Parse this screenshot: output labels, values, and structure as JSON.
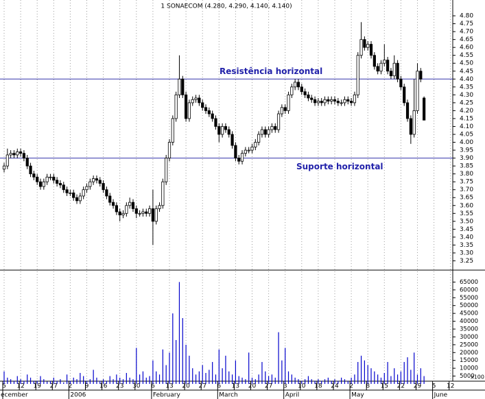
{
  "chart_data": {
    "type": "candlestick",
    "title": "1 SONAECOM (4.280, 4.290, 4.140, 4.140)",
    "categories": [
      "5",
      null,
      null,
      null,
      null,
      "12",
      null,
      null,
      null,
      null,
      "19",
      null,
      null,
      null,
      null,
      "27",
      null,
      null,
      null,
      null,
      "2",
      null,
      null,
      null,
      null,
      "9",
      null,
      null,
      null,
      null,
      "16",
      null,
      null,
      null,
      null,
      "23",
      null,
      null,
      null,
      null,
      "30",
      null,
      null,
      null,
      null,
      "6",
      null,
      null,
      null,
      null,
      "13",
      null,
      null,
      null,
      null,
      "20",
      null,
      null,
      null,
      null,
      "27",
      null,
      null,
      null,
      null,
      "6",
      null,
      null,
      null,
      null,
      "13",
      null,
      null,
      null,
      null,
      "20",
      null,
      null,
      null,
      null,
      "27",
      null,
      null,
      null,
      null,
      "3",
      null,
      null,
      null,
      null,
      "10",
      null,
      null,
      null,
      null,
      "18",
      null,
      null,
      null,
      null,
      "24",
      null,
      null,
      null,
      null,
      "2",
      null,
      null,
      null,
      null,
      "8",
      null,
      null,
      null,
      null,
      "15",
      null,
      null,
      null,
      null,
      "22",
      null,
      null,
      null,
      null,
      "29",
      null,
      null,
      null,
      null,
      "5",
      null,
      null,
      null,
      null,
      "12"
    ],
    "months": [
      "ecember",
      null,
      null,
      null,
      null,
      null,
      null,
      null,
      null,
      null,
      null,
      null,
      null,
      null,
      null,
      null,
      null,
      null,
      null,
      null,
      "2006",
      null,
      null,
      null,
      null,
      null,
      null,
      null,
      null,
      null,
      null,
      null,
      null,
      null,
      null,
      null,
      null,
      null,
      null,
      null,
      null,
      null,
      null,
      null,
      null,
      "February",
      null,
      null,
      null,
      null,
      null,
      null,
      null,
      null,
      null,
      null,
      null,
      null,
      null,
      null,
      null,
      null,
      null,
      null,
      null,
      "March",
      null,
      null,
      null,
      null,
      null,
      null,
      null,
      null,
      null,
      null,
      null,
      null,
      null,
      null,
      null,
      null,
      null,
      null,
      null,
      "April",
      null,
      null,
      null,
      null,
      null,
      null,
      null,
      null,
      null,
      null,
      null,
      null,
      null,
      null,
      null,
      null,
      null,
      null,
      null,
      "May",
      null,
      null,
      null,
      null,
      null,
      null,
      null,
      null,
      null,
      null,
      null,
      null,
      null,
      null,
      null,
      null,
      null,
      null,
      null,
      null,
      null,
      null,
      null,
      null,
      "June",
      null,
      null,
      null,
      null,
      null
    ],
    "open": [
      3.83,
      3.85,
      3.92,
      3.93,
      3.92,
      3.94,
      3.93,
      3.9,
      3.85,
      3.8,
      3.78,
      3.75,
      3.72,
      3.75,
      3.78,
      3.78,
      3.76,
      3.74,
      3.73,
      3.7,
      3.68,
      3.68,
      3.65,
      3.63,
      3.66,
      3.7,
      3.72,
      3.75,
      3.77,
      3.76,
      3.74,
      3.7,
      3.66,
      3.62,
      3.6,
      3.56,
      3.54,
      3.55,
      3.6,
      3.62,
      3.58,
      3.55,
      3.55,
      3.56,
      3.55,
      3.58,
      3.5,
      3.58,
      3.6,
      3.75,
      3.9,
      4.0,
      4.15,
      4.3,
      4.4,
      4.3,
      4.15,
      4.25,
      4.27,
      4.28,
      4.25,
      4.22,
      4.2,
      4.18,
      4.15,
      4.1,
      4.05,
      4.1,
      4.08,
      4.05,
      3.98,
      3.9,
      3.88,
      3.93,
      3.95,
      3.95,
      3.97,
      4.0,
      4.05,
      4.08,
      4.05,
      4.08,
      4.1,
      4.08,
      4.18,
      4.22,
      4.2,
      4.3,
      4.35,
      4.38,
      4.35,
      4.32,
      4.3,
      4.28,
      4.27,
      4.25,
      4.26,
      4.25,
      4.27,
      4.26,
      4.27,
      4.26,
      4.25,
      4.25,
      4.27,
      4.26,
      4.25,
      4.3,
      4.55,
      4.65,
      4.6,
      4.62,
      4.55,
      4.48,
      4.45,
      4.5,
      4.52,
      4.45,
      4.42,
      4.5,
      4.4,
      4.35,
      4.25,
      4.15,
      4.05,
      4.2,
      4.45,
      4.28,
      null,
      null,
      null,
      null,
      null,
      null,
      null,
      null
    ],
    "high": [
      3.87,
      3.96,
      3.95,
      3.95,
      3.96,
      3.96,
      3.95,
      3.92,
      3.87,
      3.82,
      3.8,
      3.77,
      3.77,
      3.8,
      3.8,
      3.8,
      3.78,
      3.76,
      3.75,
      3.72,
      3.7,
      3.7,
      3.67,
      3.68,
      3.72,
      3.74,
      3.77,
      3.79,
      3.79,
      3.78,
      3.76,
      3.72,
      3.68,
      3.64,
      3.62,
      3.58,
      3.57,
      3.62,
      3.65,
      3.64,
      3.6,
      3.57,
      3.58,
      3.58,
      3.6,
      3.7,
      3.6,
      3.62,
      3.77,
      3.92,
      4.02,
      4.17,
      4.32,
      4.55,
      4.42,
      4.32,
      4.27,
      4.29,
      4.3,
      4.3,
      4.27,
      4.24,
      4.22,
      4.2,
      4.17,
      4.12,
      4.12,
      4.12,
      4.1,
      4.07,
      4.0,
      3.92,
      3.95,
      3.97,
      3.97,
      3.99,
      4.02,
      4.07,
      4.1,
      4.1,
      4.1,
      4.12,
      4.12,
      4.2,
      4.24,
      4.24,
      4.32,
      4.37,
      4.4,
      4.4,
      4.37,
      4.34,
      4.32,
      4.3,
      4.29,
      4.28,
      4.28,
      4.29,
      4.29,
      4.29,
      4.29,
      4.28,
      4.27,
      4.29,
      4.29,
      4.28,
      4.32,
      4.57,
      4.76,
      4.67,
      4.64,
      4.64,
      4.57,
      4.5,
      4.52,
      4.62,
      4.54,
      4.47,
      4.55,
      4.52,
      4.42,
      4.37,
      4.27,
      4.17,
      4.4,
      4.5,
      4.47,
      4.29,
      null,
      null,
      null,
      null,
      null,
      null,
      null,
      null
    ],
    "low": [
      3.81,
      3.83,
      3.9,
      3.9,
      3.9,
      3.91,
      3.88,
      3.83,
      3.78,
      3.76,
      3.73,
      3.7,
      3.7,
      3.73,
      3.76,
      3.74,
      3.72,
      3.71,
      3.68,
      3.66,
      3.66,
      3.63,
      3.61,
      3.61,
      3.64,
      3.68,
      3.7,
      3.73,
      3.74,
      3.72,
      3.68,
      3.64,
      3.6,
      3.58,
      3.54,
      3.5,
      3.52,
      3.53,
      3.58,
      3.56,
      3.52,
      3.53,
      3.53,
      3.53,
      3.53,
      3.35,
      3.48,
      3.56,
      3.58,
      3.73,
      3.88,
      3.98,
      4.13,
      4.28,
      4.28,
      4.13,
      4.13,
      4.23,
      4.25,
      4.23,
      4.2,
      4.18,
      4.16,
      4.13,
      4.08,
      4.0,
      4.03,
      4.06,
      4.03,
      3.96,
      3.88,
      3.86,
      3.86,
      3.91,
      3.93,
      3.93,
      3.95,
      3.98,
      4.03,
      4.03,
      4.03,
      4.06,
      4.06,
      4.06,
      4.16,
      4.18,
      4.18,
      4.28,
      4.33,
      4.33,
      4.3,
      4.28,
      4.26,
      4.25,
      4.23,
      4.23,
      4.23,
      4.23,
      4.24,
      4.24,
      4.24,
      4.23,
      4.23,
      4.23,
      4.24,
      4.23,
      4.23,
      4.28,
      4.53,
      4.58,
      4.58,
      4.53,
      4.46,
      4.43,
      4.43,
      4.48,
      4.43,
      4.4,
      4.4,
      4.38,
      4.33,
      4.23,
      4.13,
      3.99,
      4.03,
      4.18,
      4.38,
      4.14,
      null,
      null,
      null,
      null,
      null,
      null,
      null,
      null
    ],
    "close": [
      3.85,
      3.92,
      3.93,
      3.92,
      3.94,
      3.93,
      3.9,
      3.85,
      3.8,
      3.78,
      3.75,
      3.72,
      3.75,
      3.78,
      3.78,
      3.76,
      3.74,
      3.73,
      3.7,
      3.68,
      3.68,
      3.65,
      3.63,
      3.66,
      3.7,
      3.72,
      3.75,
      3.77,
      3.76,
      3.74,
      3.7,
      3.66,
      3.62,
      3.6,
      3.56,
      3.54,
      3.55,
      3.6,
      3.62,
      3.58,
      3.55,
      3.55,
      3.56,
      3.55,
      3.58,
      3.5,
      3.58,
      3.6,
      3.75,
      3.9,
      4.0,
      4.15,
      4.3,
      4.4,
      4.3,
      4.15,
      4.25,
      4.27,
      4.28,
      4.25,
      4.22,
      4.2,
      4.18,
      4.15,
      4.1,
      4.05,
      4.1,
      4.08,
      4.05,
      3.98,
      3.9,
      3.88,
      3.93,
      3.95,
      3.95,
      3.97,
      4.0,
      4.05,
      4.08,
      4.05,
      4.08,
      4.1,
      4.08,
      4.18,
      4.22,
      4.2,
      4.3,
      4.35,
      4.38,
      4.35,
      4.32,
      4.3,
      4.28,
      4.27,
      4.25,
      4.26,
      4.25,
      4.27,
      4.26,
      4.27,
      4.26,
      4.25,
      4.25,
      4.27,
      4.26,
      4.25,
      4.3,
      4.55,
      4.65,
      4.6,
      4.62,
      4.55,
      4.48,
      4.45,
      4.5,
      4.52,
      4.45,
      4.42,
      4.5,
      4.4,
      4.35,
      4.25,
      4.15,
      4.05,
      4.2,
      4.45,
      4.4,
      4.14,
      null,
      null,
      null,
      null,
      null,
      null,
      null,
      null
    ],
    "volume": [
      8000,
      4000,
      3000,
      2000,
      5000,
      3000,
      2000,
      6000,
      4000,
      2000,
      2000,
      5000,
      3000,
      1500,
      2000,
      4000,
      2000,
      3000,
      1000,
      6000,
      2000,
      4000,
      3000,
      7000,
      5000,
      2000,
      3000,
      9000,
      4000,
      2000,
      3000,
      2000,
      5000,
      3000,
      6000,
      4000,
      3000,
      7000,
      4000,
      3000,
      23000,
      6000,
      8000,
      4000,
      5000,
      15000,
      8000,
      6000,
      22000,
      12000,
      20000,
      45000,
      28000,
      65000,
      42000,
      25000,
      18000,
      10000,
      6000,
      8000,
      12000,
      7000,
      9000,
      14000,
      6000,
      22000,
      10000,
      18000,
      8000,
      6000,
      15000,
      5000,
      4000,
      3000,
      20000,
      4000,
      3000,
      6000,
      14000,
      8000,
      5000,
      6000,
      4000,
      33000,
      15000,
      23000,
      8000,
      6000,
      4000,
      3000,
      2000,
      3000,
      5000,
      3000,
      2000,
      3000,
      2000,
      3000,
      4000,
      2000,
      3000,
      2000,
      4000,
      3000,
      2000,
      4000,
      6000,
      14000,
      18000,
      15000,
      12000,
      10000,
      8000,
      6000,
      4000,
      7000,
      14000,
      5000,
      10000,
      6000,
      8000,
      14000,
      17000,
      9000,
      20000,
      6000,
      10000,
      5000,
      null,
      null,
      null,
      null,
      null,
      null,
      null,
      null
    ],
    "up_color": "#ffffff",
    "down_color": "#000000",
    "volume_color": "#0000cc",
    "ylim": [
      3.2,
      4.9
    ],
    "yticks": [
      {
        "value": 4.8,
        "label": "4.80"
      },
      {
        "value": 4.75,
        "label": "4.75"
      },
      {
        "value": 4.7,
        "label": "4.70"
      },
      {
        "value": 4.65,
        "label": "4.65"
      },
      {
        "value": 4.6,
        "label": "4.60"
      },
      {
        "value": 4.55,
        "label": "4.55"
      },
      {
        "value": 4.5,
        "label": "4.50"
      },
      {
        "value": 4.45,
        "label": "4.45"
      },
      {
        "value": 4.4,
        "label": "4.40"
      },
      {
        "value": 4.35,
        "label": "4.35"
      },
      {
        "value": 4.3,
        "label": "4.30"
      },
      {
        "value": 4.25,
        "label": "4.25"
      },
      {
        "value": 4.2,
        "label": "4.20"
      },
      {
        "value": 4.15,
        "label": "4.15"
      },
      {
        "value": 4.1,
        "label": "4.10"
      },
      {
        "value": 4.05,
        "label": "4.05"
      },
      {
        "value": 4.0,
        "label": "4.00"
      },
      {
        "value": 3.95,
        "label": "3.95"
      },
      {
        "value": 3.9,
        "label": "3.90"
      },
      {
        "value": 3.85,
        "label": "3.85"
      },
      {
        "value": 3.8,
        "label": "3.80"
      },
      {
        "value": 3.75,
        "label": "3.75"
      },
      {
        "value": 3.7,
        "label": "3.70"
      },
      {
        "value": 3.65,
        "label": "3.65"
      },
      {
        "value": 3.6,
        "label": "3.60"
      },
      {
        "value": 3.55,
        "label": "3.55"
      },
      {
        "value": 3.5,
        "label": "3.50"
      },
      {
        "value": 3.45,
        "label": "3.45"
      },
      {
        "value": 3.4,
        "label": "3.40"
      },
      {
        "value": 3.35,
        "label": "3.35"
      },
      {
        "value": 3.3,
        "label": "3.30"
      },
      {
        "value": 3.25,
        "label": "3.25"
      }
    ],
    "y2lim": [
      0,
      70000
    ],
    "y2ticks": [
      65000,
      60000,
      55000,
      50000,
      45000,
      40000,
      35000,
      30000,
      25000,
      20000,
      15000,
      10000,
      5000
    ],
    "volume_unit": "x100",
    "hlines": [
      {
        "value": 4.4,
        "label": "Resistência horizontal",
        "color": "#3333aa"
      },
      {
        "value": 3.9,
        "label": "Suporte horizontal",
        "color": "#3333aa"
      }
    ],
    "grid": true
  }
}
